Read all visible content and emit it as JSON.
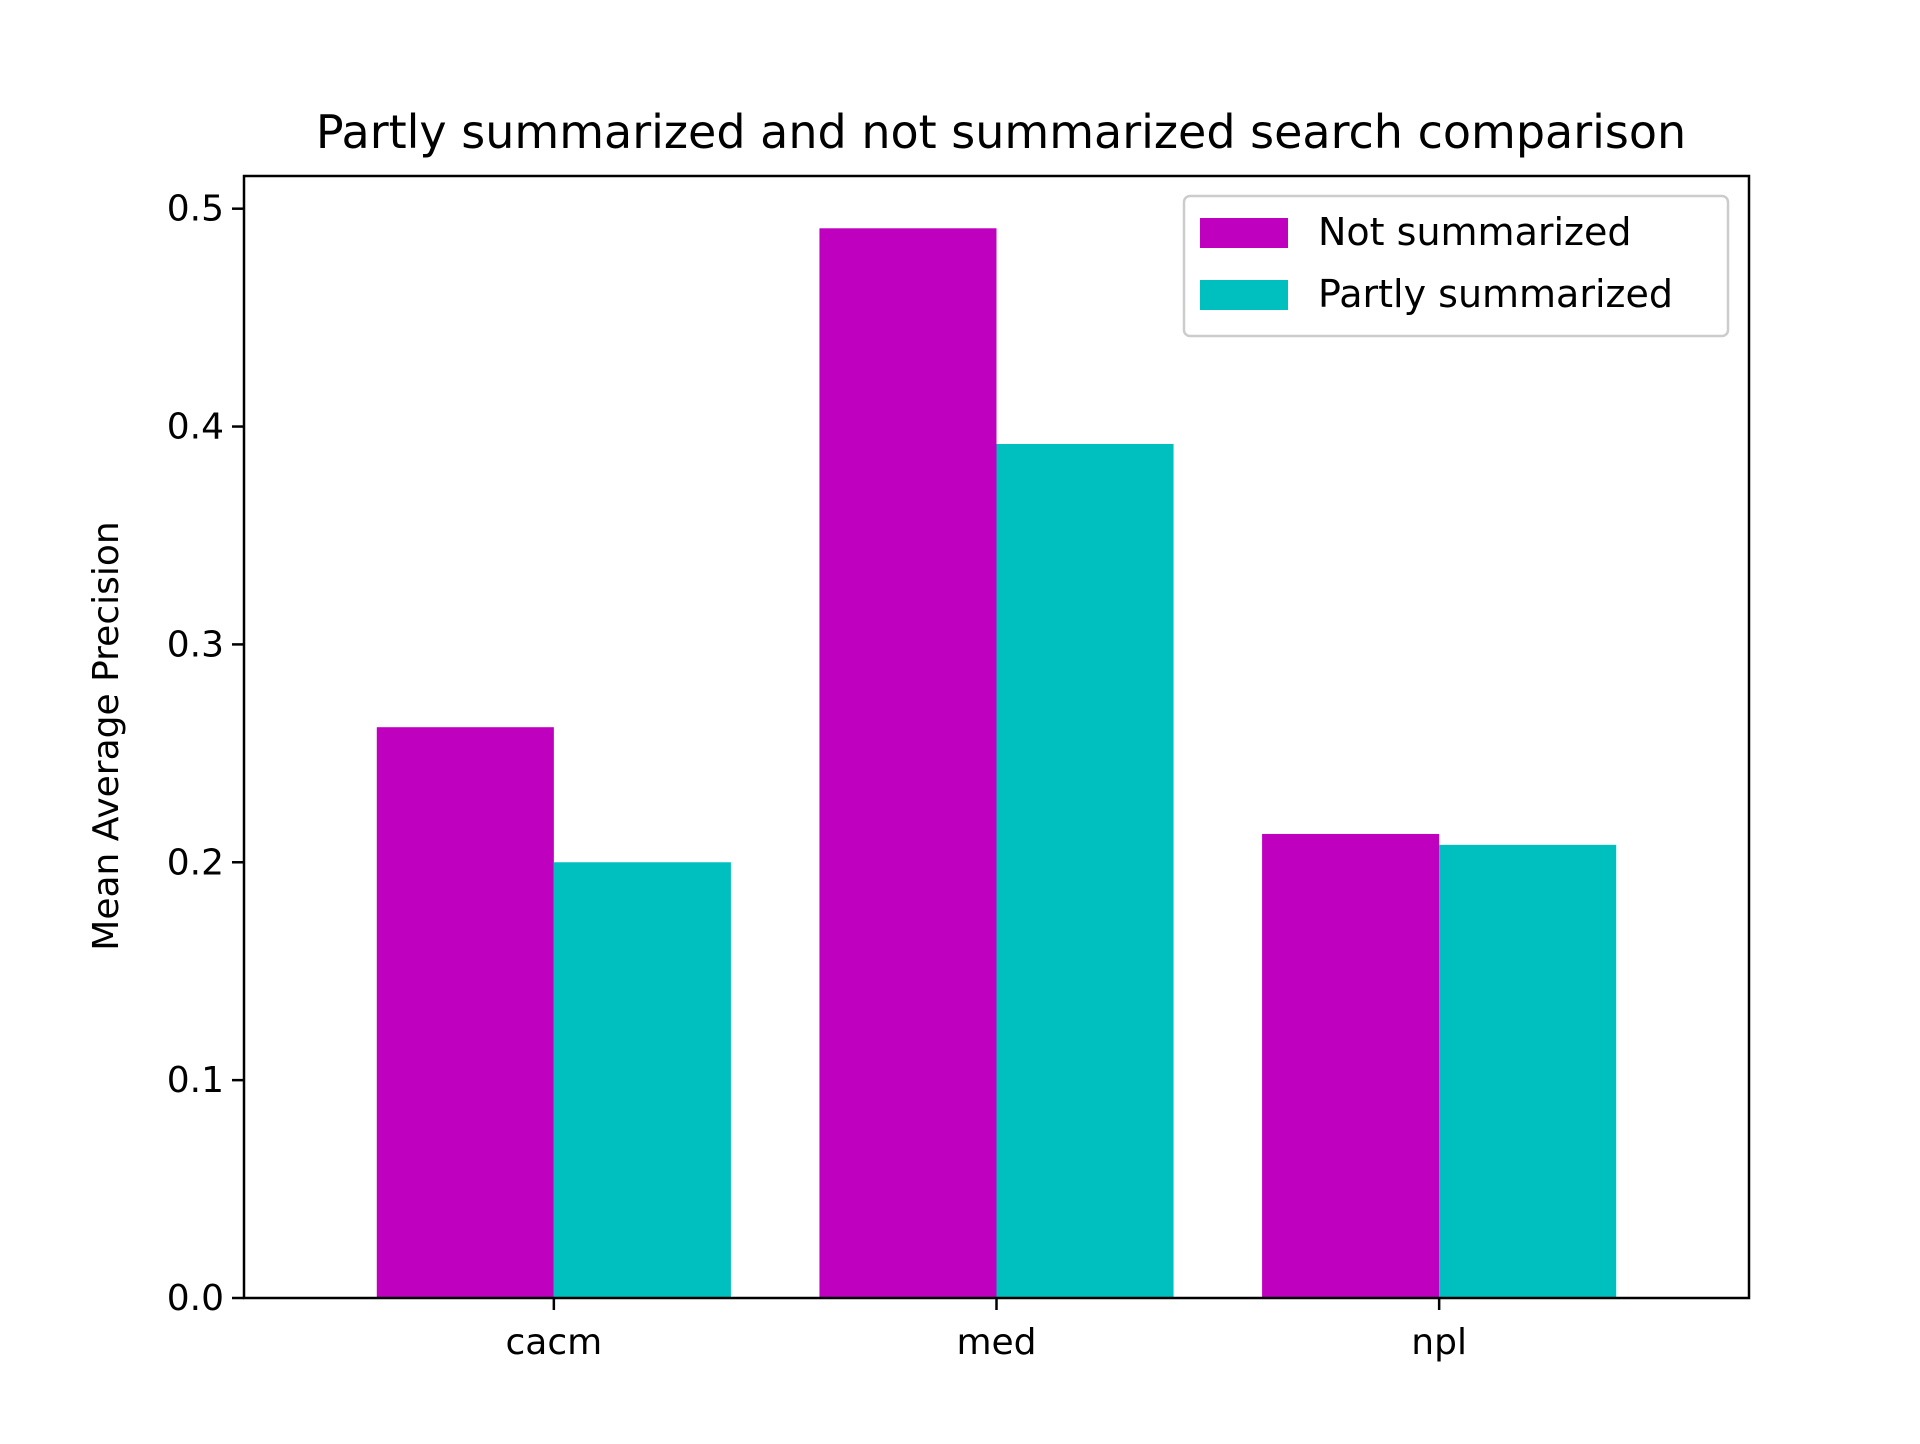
{
  "chart_data": {
    "type": "bar",
    "title": "Partly summarized and not summarized search comparison",
    "xlabel": "",
    "ylabel": "Mean Average Precision",
    "categories": [
      "cacm",
      "med",
      "npl"
    ],
    "series": [
      {
        "name": "Not summarized",
        "color": "#bf00bf",
        "values": [
          0.262,
          0.491,
          0.213
        ]
      },
      {
        "name": "Partly summarized",
        "color": "#00bfbf",
        "values": [
          0.2,
          0.392,
          0.208
        ]
      }
    ],
    "ylim": [
      0,
      0.515
    ],
    "yticks": [
      "0.0",
      "0.1",
      "0.2",
      "0.3",
      "0.4",
      "0.5"
    ],
    "grid": false,
    "legend_position": "top-right"
  }
}
